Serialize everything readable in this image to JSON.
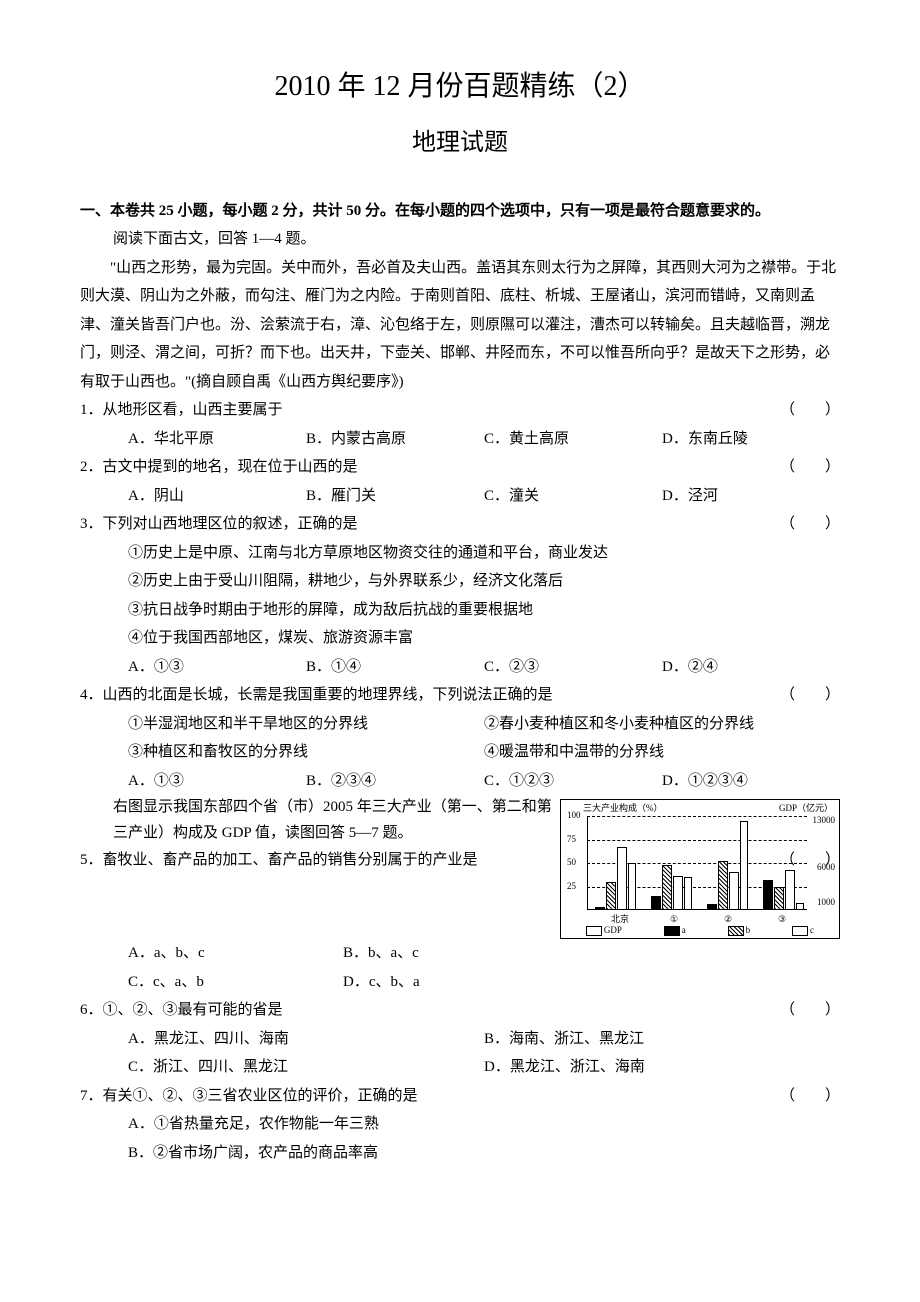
{
  "title": "2010 年 12 月份百题精练（2）",
  "subtitle": "地理试题",
  "section_header": "一、本卷共 25 小题，每小题 2 分，共计 50 分。在每小题的四个选项中，只有一项是最符合题意要求的。",
  "reading_prompt": "阅读下面古文，回答 1—4 题。",
  "passage": "\"山西之形势，最为完固。关中而外，吾必首及夫山西。盖语其东则太行为之屏障，其西则大河为之襟带。于北则大漠、阴山为之外蔽，而勾注、雁门为之内险。于南则首阳、底柱、析城、王屋诸山，滨河而错峙，又南则孟津、潼关皆吾门户也。汾、浍萦流于右，漳、沁包络于左，则原隰可以灌注，漕杰可以转输矣。且夫越临晋，溯龙门，则泾、渭之间，可折？而下也。出天井，下壶关、邯郸、井陉而东，不可以惟吾所向乎？是故天下之形势，必有取于山西也。\"(摘自顾自禹《山西方舆纪要序》)",
  "q1": {
    "stem": "1．从地形区看，山西主要属于",
    "paren": "（　　）",
    "A": "A．华北平原",
    "B": "B．内蒙古高原",
    "C": "C．黄土高原",
    "D": "D．东南丘陵"
  },
  "q2": {
    "stem": "2．古文中提到的地名，现在位于山西的是",
    "paren": "（　　）",
    "A": "A．阴山",
    "B": "B．雁门关",
    "C": "C．潼关",
    "D": "D．泾河"
  },
  "q3": {
    "stem": "3．下列对山西地理区位的叙述，正确的是",
    "paren": "（　　）",
    "s1": "①历史上是中原、江南与北方草原地区物资交往的通道和平台，商业发达",
    "s2": "②历史上由于受山川阻隔，耕地少，与外界联系少，经济文化落后",
    "s3": "③抗日战争时期由于地形的屏障，成为敌后抗战的重要根据地",
    "s4": "④位于我国西部地区，煤炭、旅游资源丰富",
    "A": "A．①③",
    "B": "B．①④",
    "C": "C．②③",
    "D": "D．②④"
  },
  "q4": {
    "stem": "4．山西的北面是长城，长需是我国重要的地理界线，下列说法正确的是",
    "paren": "（　　）",
    "s1": "①半湿润地区和半干旱地区的分界线",
    "s2": "②春小麦种植区和冬小麦种植区的分界线",
    "s3": "③种植区和畜牧区的分界线",
    "s4": "④暖温带和中温带的分界线",
    "A": "A．①③",
    "B": "B．②③④",
    "C": "C．①②③",
    "D": "D．①②③④"
  },
  "chart_intro": "右图显示我国东部四个省（市）2005 年三大产业（第一、第二和第三产业）构成及 GDP 值，读图回答 5—7 题。",
  "q5": {
    "stem": "5．畜牧业、畜产品的加工、畜产品的销售分别属于的产业是",
    "paren": "（　　）",
    "A": "A．a、b、c",
    "B": "B．b、a、c",
    "C": "C．c、a、b",
    "D": "D．c、b、a"
  },
  "q6": {
    "stem": "6．①、②、③最有可能的省是",
    "paren": "（　　）",
    "A": "A．黑龙江、四川、海南",
    "B": "B．海南、浙江、黑龙江",
    "C": "C．浙江、四川、黑龙江",
    "D": "D．黑龙江、浙江、海南"
  },
  "q7": {
    "stem": "7．有关①、②、③三省农业区位的评价，正确的是",
    "paren": "（　　）",
    "A": "A．①省热量充足，农作物能一年三熟",
    "B": "B．②省市场广阔，农产品的商品率高"
  },
  "chart": {
    "left_title": "三大产业构成（%）",
    "right_title": "GDP（亿元）",
    "y_left": [
      100,
      75,
      50,
      25
    ],
    "y_right": [
      13000,
      6000,
      1000
    ],
    "x_labels": [
      "北京",
      "①",
      "②",
      "③"
    ],
    "legend": [
      "GDP",
      "a",
      "b",
      "c"
    ],
    "fill_a": "#000000",
    "fill_b": "repeating-linear-gradient(45deg,#000 0 1px,#fff 1px 3px)",
    "fill_c": "#ffffff",
    "fill_gdp": "#ffffff",
    "groups": [
      {
        "a": 3,
        "b": 30,
        "c": 67,
        "gdp": 50
      },
      {
        "a": 15,
        "b": 48,
        "c": 37,
        "gdp": 35
      },
      {
        "a": 7,
        "b": 52,
        "c": 41,
        "gdp": 95
      },
      {
        "a": 32,
        "b": 25,
        "c": 43,
        "gdp": 8
      }
    ]
  }
}
